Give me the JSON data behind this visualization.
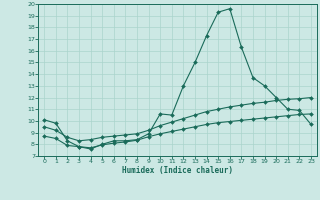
{
  "xlabel": "Humidex (Indice chaleur)",
  "xlim": [
    -0.5,
    23.5
  ],
  "ylim": [
    7,
    20
  ],
  "xticks": [
    0,
    1,
    2,
    3,
    4,
    5,
    6,
    7,
    8,
    9,
    10,
    11,
    12,
    13,
    14,
    15,
    16,
    17,
    18,
    19,
    20,
    21,
    22,
    23
  ],
  "yticks": [
    7,
    8,
    9,
    10,
    11,
    12,
    13,
    14,
    15,
    16,
    17,
    18,
    19,
    20
  ],
  "bg_color": "#cce8e4",
  "grid_color": "#aad4cc",
  "line_color": "#1a6b5a",
  "line1_x": [
    0,
    1,
    2,
    3,
    4,
    5,
    6,
    7,
    8,
    9,
    10,
    11,
    12,
    13,
    14,
    15,
    16,
    17,
    18,
    19,
    20,
    21,
    22,
    23
  ],
  "line1_y": [
    10.1,
    9.8,
    8.3,
    7.8,
    7.6,
    8.0,
    8.3,
    8.3,
    8.4,
    8.9,
    10.6,
    10.5,
    13.0,
    15.0,
    17.3,
    19.3,
    19.6,
    16.3,
    13.7,
    13.0,
    12.0,
    11.0,
    10.9,
    9.7
  ],
  "line2_x": [
    0,
    1,
    2,
    3,
    4,
    5,
    6,
    7,
    8,
    9,
    10,
    11,
    12,
    13,
    14,
    15,
    16,
    17,
    18,
    19,
    20,
    21,
    22,
    23
  ],
  "line2_y": [
    9.5,
    9.2,
    8.6,
    8.3,
    8.4,
    8.6,
    8.7,
    8.8,
    8.9,
    9.2,
    9.6,
    9.9,
    10.2,
    10.5,
    10.8,
    11.0,
    11.2,
    11.35,
    11.5,
    11.6,
    11.75,
    11.85,
    11.9,
    12.0
  ],
  "line3_x": [
    0,
    1,
    2,
    3,
    4,
    5,
    6,
    7,
    8,
    9,
    10,
    11,
    12,
    13,
    14,
    15,
    16,
    17,
    18,
    19,
    20,
    21,
    22,
    23
  ],
  "line3_y": [
    8.7,
    8.5,
    7.9,
    7.8,
    7.7,
    7.95,
    8.1,
    8.2,
    8.35,
    8.65,
    8.9,
    9.1,
    9.3,
    9.5,
    9.7,
    9.85,
    9.95,
    10.05,
    10.15,
    10.25,
    10.35,
    10.45,
    10.55,
    10.6
  ]
}
